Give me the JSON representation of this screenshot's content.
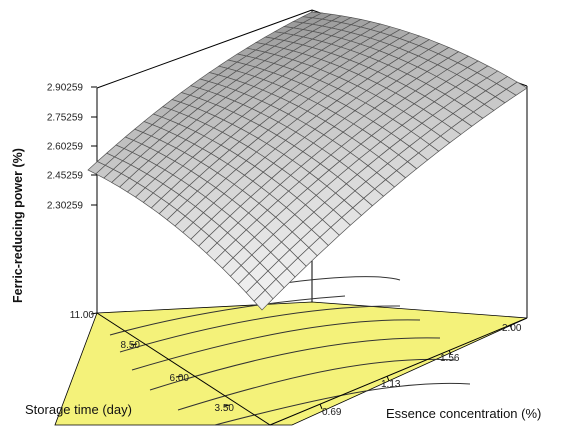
{
  "chart_data": {
    "type": "surface",
    "xlabel": "Storage time (day)",
    "ylabel": "Essence concentration (%)",
    "zlabel": "Ferric-reducing power (%)",
    "x_ticks": [
      "3.50",
      "6.00",
      "8.50",
      "11.00"
    ],
    "y_ticks": [
      "0.69",
      "1.13",
      "1.56",
      "2.00"
    ],
    "z_ticks": [
      "2.30259",
      "2.45259",
      "2.60259",
      "2.75259",
      "2.90259"
    ],
    "xlim": [
      1,
      11
    ],
    "ylim": [
      0.25,
      2
    ],
    "zlim": [
      2.30259,
      2.90259
    ],
    "surface_corners": {
      "storage_1_essence_0.25": 2.49,
      "storage_1_essence_2": 2.98,
      "storage_11_essence_0.25": 2.2,
      "storage_11_essence_2": 2.4
    },
    "grid": true,
    "projection": "3d",
    "colors": {
      "surface": "#c7c7c7",
      "surface_grid": "#555555",
      "floor": "#f4f27a",
      "contour": "#333333",
      "axis": "#000000"
    }
  }
}
